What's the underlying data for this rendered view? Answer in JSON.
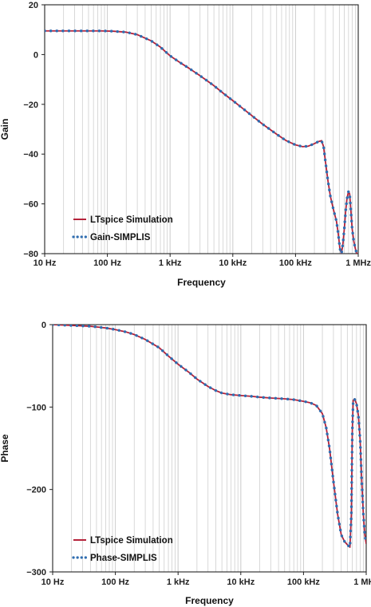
{
  "chart_data": [
    {
      "type": "line",
      "xscale": "log",
      "xlabel": "Frequency",
      "ylabel": "Gain",
      "xlim": [
        10,
        1000000
      ],
      "ylim": [
        -80,
        20
      ],
      "xticks": [
        {
          "value": 10,
          "label": "10 Hz"
        },
        {
          "value": 100,
          "label": "100 Hz"
        },
        {
          "value": 1000,
          "label": "1 kHz"
        },
        {
          "value": 10000,
          "label": "10 kHz"
        },
        {
          "value": 100000,
          "label": "100 kHz"
        },
        {
          "value": 1000000,
          "label": "1 MHz"
        }
      ],
      "yticks": [
        {
          "value": 20,
          "label": "20"
        },
        {
          "value": 0,
          "label": "0"
        },
        {
          "value": -20,
          "label": "−20"
        },
        {
          "value": -40,
          "label": "−40"
        },
        {
          "value": -60,
          "label": "−60"
        },
        {
          "value": -80,
          "label": "−80"
        }
      ],
      "grid": "vertical log gridlines",
      "legend_position": "bottom-left",
      "series": [
        {
          "name": "LTspice Simulation",
          "style": "solid",
          "color": "#b5223a",
          "x": [
            10,
            20,
            40,
            80,
            120,
            200,
            300,
            500,
            700,
            1000,
            1500,
            2000,
            3000,
            5000,
            7000,
            10000,
            15000,
            20000,
            30000,
            50000,
            70000,
            100000,
            130000,
            160000,
            200000,
            230000,
            260000,
            280000,
            300000,
            330000,
            360000,
            400000,
            450000,
            480000,
            510000,
            540000,
            570000,
            600000,
            630000,
            660000,
            700000,
            730000,
            760000,
            800000,
            850000,
            900000,
            950000,
            1000000
          ],
          "y": [
            9.5,
            9.5,
            9.5,
            9.5,
            9.4,
            9.0,
            8.0,
            5.5,
            3.0,
            -0.5,
            -3.5,
            -5.5,
            -8.5,
            -12.5,
            -15.5,
            -18.5,
            -22.0,
            -24.5,
            -28.0,
            -32.0,
            -34.5,
            -36.3,
            -37.0,
            -36.8,
            -35.8,
            -35.0,
            -34.6,
            -37.0,
            -43.0,
            -51.0,
            -57.0,
            -62.0,
            -67.0,
            -72.0,
            -78.0,
            -80.0,
            -76.0,
            -70.0,
            -63.0,
            -58.0,
            -55.0,
            -56.0,
            -62.0,
            -70.0,
            -75.0,
            -78.0,
            -80.0,
            -81.0
          ]
        },
        {
          "name": "Gain-SIMPLIS",
          "style": "dotted",
          "color": "#2f6db0",
          "x": [
            10,
            20,
            40,
            80,
            120,
            200,
            300,
            500,
            700,
            1000,
            1500,
            2000,
            3000,
            5000,
            7000,
            10000,
            15000,
            20000,
            30000,
            50000,
            70000,
            100000,
            130000,
            160000,
            200000,
            230000,
            260000,
            280000,
            300000,
            330000,
            360000,
            400000,
            450000,
            480000,
            510000,
            540000,
            570000,
            600000,
            630000,
            660000,
            700000,
            730000,
            760000,
            800000,
            850000,
            900000,
            950000,
            1000000
          ],
          "y": [
            9.5,
            9.5,
            9.5,
            9.5,
            9.4,
            9.0,
            8.0,
            5.5,
            3.0,
            -0.5,
            -3.5,
            -5.5,
            -8.5,
            -12.5,
            -15.5,
            -18.5,
            -22.0,
            -24.5,
            -28.0,
            -32.0,
            -34.5,
            -36.3,
            -37.0,
            -36.8,
            -35.8,
            -35.0,
            -34.6,
            -37.0,
            -43.0,
            -51.0,
            -57.0,
            -62.0,
            -67.0,
            -72.0,
            -78.0,
            -80.0,
            -76.0,
            -70.0,
            -63.0,
            -58.0,
            -55.0,
            -56.0,
            -62.0,
            -70.0,
            -75.0,
            -78.0,
            -80.0,
            -81.0
          ]
        }
      ]
    },
    {
      "type": "line",
      "xscale": "log",
      "xlabel": "Frequency",
      "ylabel": "Phase",
      "xlim": [
        10,
        1000000
      ],
      "ylim": [
        -300,
        0
      ],
      "xticks": [
        {
          "value": 10,
          "label": "10 Hz"
        },
        {
          "value": 100,
          "label": "100 Hz"
        },
        {
          "value": 1000,
          "label": "1 kHz"
        },
        {
          "value": 10000,
          "label": "10 kHz"
        },
        {
          "value": 100000,
          "label": "100 kHz"
        },
        {
          "value": 1000000,
          "label": "1 MHz"
        }
      ],
      "yticks": [
        {
          "value": 0,
          "label": "0"
        },
        {
          "value": -100,
          "label": "−100"
        },
        {
          "value": -200,
          "label": "−200"
        },
        {
          "value": -300,
          "label": "−300"
        }
      ],
      "grid": "vertical log gridlines",
      "legend_position": "bottom-left",
      "series": [
        {
          "name": "LTspice Simulation",
          "style": "solid",
          "color": "#b5223a",
          "x": [
            10,
            20,
            40,
            70,
            100,
            150,
            200,
            300,
            500,
            700,
            1000,
            1500,
            2000,
            3000,
            4000,
            5000,
            7000,
            10000,
            15000,
            20000,
            30000,
            50000,
            70000,
            100000,
            130000,
            160000,
            200000,
            230000,
            260000,
            300000,
            350000,
            400000,
            450000,
            500000,
            550000,
            580000,
            600000,
            620000,
            650000,
            700000,
            750000,
            800000,
            850000,
            900000,
            950000,
            1000000
          ],
          "y": [
            0,
            -1,
            -2,
            -4,
            -6,
            -9,
            -12,
            -18,
            -28,
            -38,
            -48,
            -58,
            -66,
            -75,
            -80,
            -83,
            -85,
            -86,
            -87,
            -88,
            -89,
            -90,
            -91,
            -93,
            -95,
            -98,
            -108,
            -125,
            -150,
            -190,
            -230,
            -255,
            -263,
            -267,
            -270,
            -230,
            -130,
            -92,
            -90,
            -96,
            -110,
            -140,
            -190,
            -230,
            -255,
            -266
          ]
        },
        {
          "name": "Phase-SIMPLIS",
          "style": "dotted",
          "color": "#2f6db0",
          "x": [
            10,
            20,
            40,
            70,
            100,
            150,
            200,
            300,
            500,
            700,
            1000,
            1500,
            2000,
            3000,
            4000,
            5000,
            7000,
            10000,
            15000,
            20000,
            30000,
            50000,
            70000,
            100000,
            130000,
            160000,
            200000,
            230000,
            260000,
            300000,
            350000,
            400000,
            450000,
            500000,
            550000,
            580000,
            600000,
            620000,
            650000,
            700000,
            750000,
            800000,
            850000,
            900000,
            950000,
            1000000
          ],
          "y": [
            0,
            -1,
            -2,
            -4,
            -6,
            -9,
            -12,
            -18,
            -28,
            -38,
            -48,
            -58,
            -66,
            -75,
            -80,
            -83,
            -85,
            -86,
            -87,
            -88,
            -89,
            -90,
            -91,
            -93,
            -95,
            -98,
            -108,
            -125,
            -150,
            -190,
            -230,
            -255,
            -263,
            -267,
            -270,
            -230,
            -130,
            -92,
            -90,
            -96,
            -110,
            -140,
            -190,
            -230,
            -255,
            -266
          ]
        }
      ]
    }
  ]
}
